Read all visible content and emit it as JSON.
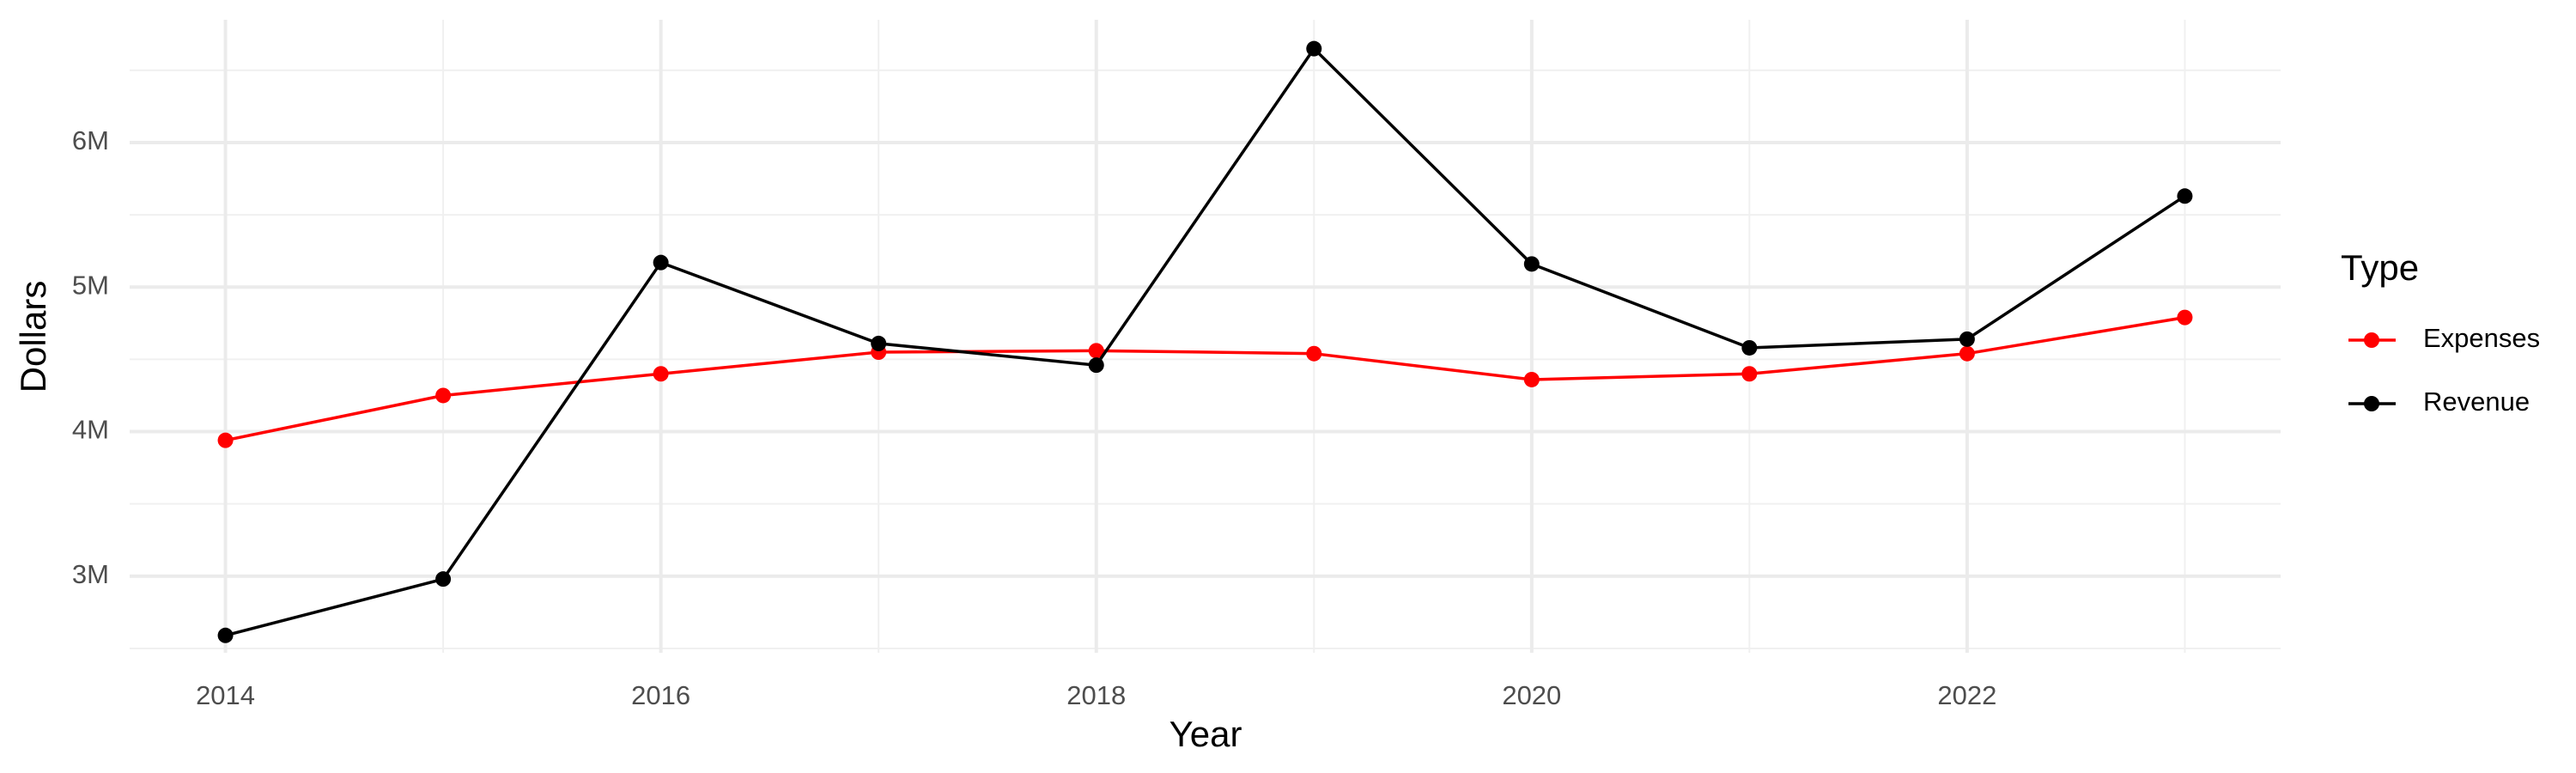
{
  "chart_data": {
    "type": "line",
    "x_label": "Year",
    "y_label": "Dollars",
    "x": [
      2014,
      2015,
      2016,
      2017,
      2018,
      2019,
      2020,
      2021,
      2022,
      2023
    ],
    "series": [
      {
        "name": "Expenses",
        "color": "#ff0000",
        "values": [
          3940000,
          4250000,
          4400000,
          4550000,
          4560000,
          4540000,
          4360000,
          4400000,
          4540000,
          4790000
        ]
      },
      {
        "name": "Revenue",
        "color": "#000000",
        "values": [
          2590000,
          2980000,
          5170000,
          4610000,
          4460000,
          6650000,
          5160000,
          4580000,
          4640000,
          5630000
        ]
      }
    ],
    "xlim": [
      2013.56,
      2023.44
    ],
    "xticks": [
      2014,
      2016,
      2018,
      2020,
      2022
    ],
    "ylim": [
      2470000,
      6850000
    ],
    "yticks": [
      {
        "value": 3000000,
        "label": "3M"
      },
      {
        "value": 4000000,
        "label": "4M"
      },
      {
        "value": 5000000,
        "label": "5M"
      },
      {
        "value": 6000000,
        "label": "6M"
      }
    ],
    "grid": true,
    "legend_title": "Type",
    "legend_position": "right"
  }
}
